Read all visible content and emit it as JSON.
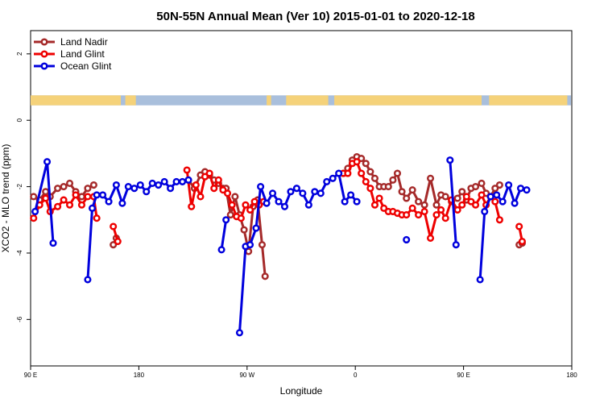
{
  "chart_data": {
    "type": "line",
    "title": "50N-55N Annual Mean (Ver 10)   2015-01-01 to 2020-12-18",
    "xlabel": "Longitude",
    "ylabel": "XCO2 - MLO trend (ppm)",
    "xlim": [
      90,
      450
    ],
    "ylim": [
      -7.4,
      2.7
    ],
    "x_ticks": [
      {
        "value": 90,
        "label": "90 E"
      },
      {
        "value": 162,
        "label": "180"
      },
      {
        "value": 234,
        "label": "90 W"
      },
      {
        "value": 306,
        "label": "0"
      },
      {
        "value": 378,
        "label": "90 E"
      },
      {
        "value": 450,
        "label": "180"
      }
    ],
    "y_ticks": [
      {
        "value": 2,
        "label": "2"
      },
      {
        "value": 0,
        "label": "0"
      },
      {
        "value": -2,
        "label": "-2"
      },
      {
        "value": -4,
        "label": "-4"
      },
      {
        "value": -6,
        "label": "-6"
      }
    ],
    "grid": false,
    "legend_position": "top-left",
    "land_ocean_strip": {
      "y_top": 0.75,
      "y_bottom": 0.45,
      "land_color": "#f5d27a",
      "ocean_color": "#a9bfdc"
    },
    "series": [
      {
        "name": "Land Nadir",
        "color": "#a52a2a",
        "points": [
          [
            92,
            -2.3
          ],
          [
            96,
            -2.4
          ],
          [
            100,
            -2.15
          ],
          [
            103,
            -2.3
          ],
          [
            108,
            -2.05
          ],
          [
            112,
            -2.0
          ],
          [
            116,
            -1.9
          ],
          [
            120,
            -2.15
          ],
          [
            124,
            -2.3
          ],
          [
            128,
            -2.05
          ],
          [
            132,
            -1.95
          ],
          [
            145,
            -3.75
          ],
          [
            147,
            -3.55
          ],
          [
            195,
            -1.8
          ],
          [
            199,
            -2.05
          ],
          [
            203,
            -1.65
          ],
          [
            206,
            -1.55
          ],
          [
            209,
            -1.65
          ],
          [
            212,
            -1.8
          ],
          [
            215,
            -1.9
          ],
          [
            218,
            -2.05
          ],
          [
            220,
            -2.05
          ],
          [
            223,
            -2.85
          ],
          [
            226,
            -2.3
          ],
          [
            229,
            -2.85
          ],
          [
            232,
            -3.3
          ],
          [
            235,
            -3.95
          ],
          [
            238,
            -2.6
          ],
          [
            241,
            -2.4
          ],
          [
            244,
            -3.75
          ],
          [
            246,
            -4.7
          ],
          [
            298,
            -1.6
          ],
          [
            301,
            -1.45
          ],
          [
            304,
            -1.2
          ],
          [
            307,
            -1.1
          ],
          [
            310,
            -1.15
          ],
          [
            313,
            -1.3
          ],
          [
            316,
            -1.55
          ],
          [
            319,
            -1.75
          ],
          [
            322,
            -2.0
          ],
          [
            325,
            -2.0
          ],
          [
            328,
            -2.0
          ],
          [
            331,
            -1.8
          ],
          [
            334,
            -1.6
          ],
          [
            337,
            -2.15
          ],
          [
            340,
            -2.35
          ],
          [
            344,
            -2.1
          ],
          [
            348,
            -2.45
          ],
          [
            352,
            -2.55
          ],
          [
            356,
            -1.75
          ],
          [
            360,
            -2.55
          ],
          [
            363,
            -2.25
          ],
          [
            366,
            -2.3
          ],
          [
            370,
            -2.45
          ],
          [
            374,
            -2.35
          ],
          [
            377,
            -2.15
          ],
          [
            380,
            -2.4
          ],
          [
            383,
            -2.05
          ],
          [
            386,
            -2.0
          ],
          [
            390,
            -1.9
          ],
          [
            393,
            -2.2
          ],
          [
            396,
            -2.3
          ],
          [
            399,
            -2.05
          ],
          [
            402,
            -1.95
          ],
          [
            415,
            -3.75
          ],
          [
            417,
            -3.7
          ]
        ]
      },
      {
        "name": "Land Glint",
        "color": "#ee0000",
        "points": [
          [
            92,
            -2.95
          ],
          [
            96,
            -2.55
          ],
          [
            100,
            -2.35
          ],
          [
            103,
            -2.75
          ],
          [
            108,
            -2.6
          ],
          [
            112,
            -2.4
          ],
          [
            116,
            -2.55
          ],
          [
            120,
            -2.25
          ],
          [
            124,
            -2.55
          ],
          [
            128,
            -2.3
          ],
          [
            132,
            -2.3
          ],
          [
            134,
            -2.95
          ],
          [
            145,
            -3.2
          ],
          [
            148,
            -3.65
          ],
          [
            194,
            -1.5
          ],
          [
            197,
            -2.6
          ],
          [
            200,
            -1.95
          ],
          [
            203,
            -2.3
          ],
          [
            206,
            -1.7
          ],
          [
            209,
            -1.6
          ],
          [
            212,
            -2.05
          ],
          [
            215,
            -1.8
          ],
          [
            218,
            -2.1
          ],
          [
            221,
            -2.2
          ],
          [
            224,
            -2.55
          ],
          [
            227,
            -2.9
          ],
          [
            230,
            -2.95
          ],
          [
            233,
            -2.55
          ],
          [
            236,
            -2.7
          ],
          [
            239,
            -2.45
          ],
          [
            242,
            -2.55
          ],
          [
            245,
            -2.45
          ],
          [
            298,
            -1.6
          ],
          [
            301,
            -1.6
          ],
          [
            304,
            -1.3
          ],
          [
            307,
            -1.25
          ],
          [
            310,
            -1.6
          ],
          [
            313,
            -1.85
          ],
          [
            316,
            -2.05
          ],
          [
            319,
            -2.55
          ],
          [
            322,
            -2.35
          ],
          [
            325,
            -2.65
          ],
          [
            328,
            -2.75
          ],
          [
            331,
            -2.75
          ],
          [
            334,
            -2.8
          ],
          [
            337,
            -2.85
          ],
          [
            340,
            -2.85
          ],
          [
            344,
            -2.65
          ],
          [
            348,
            -2.85
          ],
          [
            352,
            -2.75
          ],
          [
            356,
            -3.55
          ],
          [
            360,
            -2.85
          ],
          [
            363,
            -2.7
          ],
          [
            366,
            -2.95
          ],
          [
            370,
            -2.4
          ],
          [
            374,
            -2.7
          ],
          [
            377,
            -2.55
          ],
          [
            380,
            -2.3
          ],
          [
            383,
            -2.45
          ],
          [
            386,
            -2.55
          ],
          [
            390,
            -2.25
          ],
          [
            393,
            -2.55
          ],
          [
            396,
            -2.3
          ],
          [
            399,
            -2.45
          ],
          [
            402,
            -3.0
          ],
          [
            415,
            -3.2
          ],
          [
            417,
            -3.65
          ]
        ]
      },
      {
        "name": "Ocean Glint",
        "color": "#0000dd",
        "points": [
          [
            93,
            -2.75
          ],
          [
            101,
            -1.25
          ],
          [
            105,
            -3.7
          ],
          [
            128,
            -4.8
          ],
          [
            131,
            -2.65
          ],
          [
            134,
            -2.25
          ],
          [
            138,
            -2.25
          ],
          [
            142,
            -2.45
          ],
          [
            147,
            -1.95
          ],
          [
            151,
            -2.5
          ],
          [
            155,
            -2.0
          ],
          [
            159,
            -2.05
          ],
          [
            163,
            -1.95
          ],
          [
            167,
            -2.15
          ],
          [
            171,
            -1.9
          ],
          [
            175,
            -1.95
          ],
          [
            179,
            -1.85
          ],
          [
            183,
            -2.05
          ],
          [
            187,
            -1.85
          ],
          [
            191,
            -1.85
          ],
          [
            195,
            -1.8
          ],
          [
            217,
            -3.9
          ],
          [
            220,
            -3.0
          ],
          [
            229,
            -6.4
          ],
          [
            233,
            -3.8
          ],
          [
            236,
            -3.75
          ],
          [
            240,
            -3.25
          ],
          [
            243,
            -2.0
          ],
          [
            247,
            -2.5
          ],
          [
            251,
            -2.2
          ],
          [
            255,
            -2.45
          ],
          [
            259,
            -2.6
          ],
          [
            263,
            -2.15
          ],
          [
            267,
            -2.05
          ],
          [
            271,
            -2.2
          ],
          [
            275,
            -2.55
          ],
          [
            279,
            -2.15
          ],
          [
            283,
            -2.2
          ],
          [
            287,
            -1.85
          ],
          [
            291,
            -1.75
          ],
          [
            295,
            -1.6
          ],
          [
            299,
            -2.45
          ],
          [
            303,
            -2.25
          ],
          [
            307,
            -2.45
          ],
          [
            340,
            -3.6
          ],
          [
            369,
            -1.2
          ],
          [
            373,
            -3.75
          ],
          [
            389,
            -4.8
          ],
          [
            392,
            -2.75
          ],
          [
            396,
            -2.3
          ],
          [
            400,
            -2.25
          ],
          [
            404,
            -2.45
          ],
          [
            408,
            -1.95
          ],
          [
            412,
            -2.5
          ],
          [
            416,
            -2.05
          ],
          [
            420,
            -2.1
          ]
        ]
      }
    ]
  }
}
